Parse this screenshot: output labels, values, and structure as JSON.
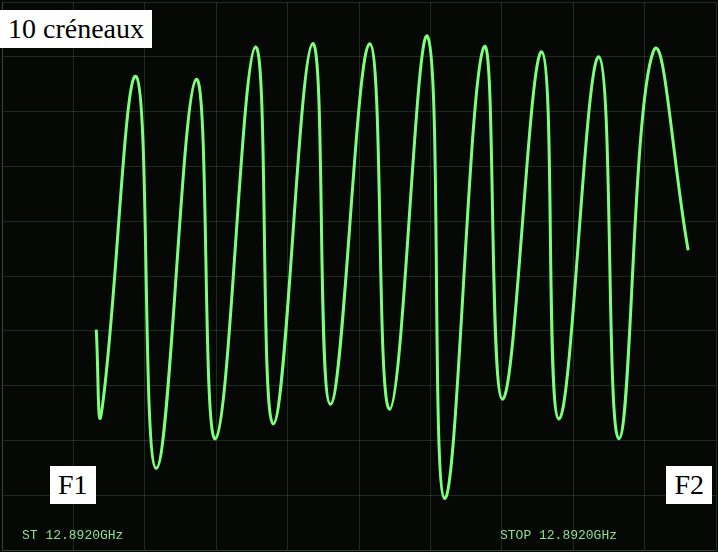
{
  "chart_data": {
    "type": "line",
    "annotations": [
      "10 créneaux",
      "F1",
      "F2",
      "ST 12.8920GHz",
      "STOP 12.8920GHz"
    ],
    "x": [
      13.2,
      13.9,
      18.8,
      21.6,
      27.2,
      29.9,
      35.5,
      38.0,
      43.5,
      46.0,
      51.5,
      54.3,
      59.6,
      62.0,
      67.5,
      70.1,
      75.6,
      78.0,
      83.6,
      86.4,
      91.2,
      96.1
    ],
    "values": [
      40.2,
      24.8,
      86.4,
      14.9,
      85.9,
      20.3,
      91.8,
      23.0,
      92.4,
      26.6,
      92.4,
      25.7,
      93.7,
      9.4,
      91.8,
      27.5,
      90.9,
      23.9,
      90.0,
      20.3,
      90.9,
      54.7
    ],
    "color": "#7dff7a",
    "xlim": [
      0,
      100
    ],
    "xticks": [
      0,
      10,
      20,
      30,
      40,
      50,
      60,
      70,
      80,
      90,
      100
    ],
    "ylim": [
      0,
      100
    ],
    "yticks": [
      0,
      10,
      20,
      30,
      40,
      50,
      60,
      70,
      80,
      90,
      100
    ],
    "grid": true,
    "tick_labels": false
  }
}
